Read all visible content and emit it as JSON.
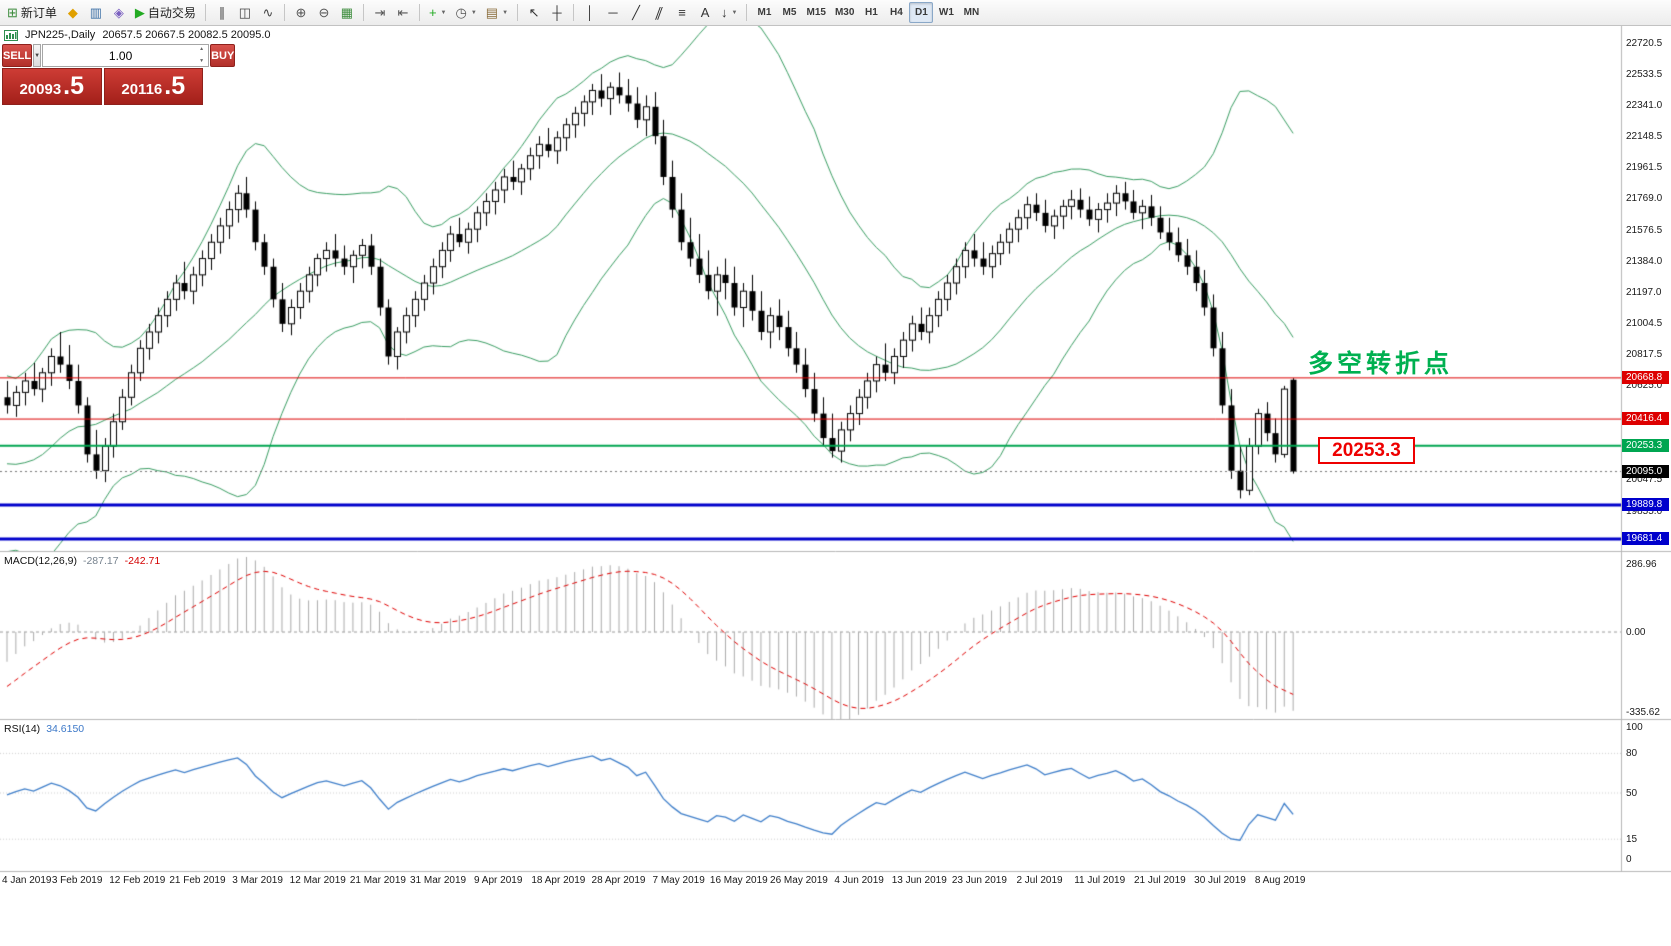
{
  "toolbar": {
    "groups": [
      {
        "name": "standard",
        "items": [
          {
            "name": "new-order-button",
            "glyph": "⊞",
            "color": "#3c8c3c",
            "label": "新订单"
          },
          {
            "name": "market-button",
            "glyph": "◆",
            "color": "#e0a000"
          },
          {
            "name": "terminal-button",
            "glyph": "▥",
            "color": "#3a6ea5"
          },
          {
            "name": "metaeditor-button",
            "glyph": "◈",
            "color": "#7a5fc0"
          },
          {
            "name": "autotrading-button",
            "glyph": "▶",
            "color": "#22aa22",
            "label": "自动交易"
          }
        ]
      },
      {
        "name": "chart-types",
        "items": [
          {
            "name": "bar-chart-button",
            "glyph": "∥",
            "color": "#444444"
          },
          {
            "name": "candlestick-chart-button",
            "glyph": "◫",
            "color": "#444444"
          },
          {
            "name": "line-chart-button",
            "glyph": "∿",
            "color": "#444444"
          }
        ]
      },
      {
        "name": "zoom",
        "items": [
          {
            "name": "zoom-in-button",
            "glyph": "⊕",
            "color": "#555555"
          },
          {
            "name": "zoom-out-button",
            "glyph": "⊖",
            "color": "#555555"
          },
          {
            "name": "tile-windows-button",
            "glyph": "▦",
            "color": "#3c8c3c"
          }
        ]
      },
      {
        "name": "scroll",
        "items": [
          {
            "name": "auto-scroll-button",
            "glyph": "⇥",
            "color": "#555555"
          },
          {
            "name": "chart-shift-button",
            "glyph": "⇤",
            "color": "#555555"
          }
        ]
      },
      {
        "name": "insert",
        "items": [
          {
            "name": "indicators-button",
            "glyph": "+",
            "color": "#22aa22",
            "dropdown": true
          },
          {
            "name": "periods-button",
            "glyph": "◷",
            "color": "#555555",
            "dropdown": true
          },
          {
            "name": "templates-button",
            "glyph": "▤",
            "color": "#8a6d3b",
            "dropdown": true
          }
        ]
      },
      {
        "name": "cursor",
        "items": [
          {
            "name": "cursor-button",
            "glyph": "↖",
            "color": "#333333"
          },
          {
            "name": "crosshair-button",
            "glyph": "┼",
            "color": "#333333"
          }
        ]
      },
      {
        "name": "objects",
        "items": [
          {
            "name": "vertical-line-button",
            "glyph": "│",
            "color": "#333333"
          },
          {
            "name": "horizontal-line-button",
            "glyph": "─",
            "color": "#333333"
          },
          {
            "name": "trendline-button",
            "glyph": "╱",
            "color": "#333333"
          },
          {
            "name": "channel-button",
            "glyph": "∥",
            "color": "#333333",
            "slanted": true
          },
          {
            "name": "fibonacci-button",
            "glyph": "≡",
            "color": "#333333"
          },
          {
            "name": "text-button",
            "glyph": "A",
            "color": "#333333"
          },
          {
            "name": "arrows-button",
            "glyph": "↓",
            "color": "#333333",
            "dropdown": true
          }
        ]
      },
      {
        "name": "timeframes",
        "items": [
          {
            "name": "timeframe-m1",
            "text": "M1"
          },
          {
            "name": "timeframe-m5",
            "text": "M5"
          },
          {
            "name": "timeframe-m15",
            "text": "M15"
          },
          {
            "name": "timeframe-m30",
            "text": "M30"
          },
          {
            "name": "timeframe-h1",
            "text": "H1"
          },
          {
            "name": "timeframe-h4",
            "text": "H4"
          },
          {
            "name": "timeframe-d1",
            "text": "D1",
            "active": true
          },
          {
            "name": "timeframe-w1",
            "text": "W1"
          },
          {
            "name": "timeframe-mn",
            "text": "MN"
          }
        ]
      }
    ]
  },
  "chart": {
    "title": "JPN225-,Daily",
    "ohlc_text": "20657.5 20667.5 20082.5 20095.0"
  },
  "trade_panel": {
    "sell_label": "SELL",
    "buy_label": "BUY",
    "lot_value": "1.00",
    "bid_main": "20093",
    "bid_frac": ".5",
    "ask_main": "20116",
    "ask_frac": ".5"
  },
  "annotations": {
    "turning_point_text": "多空转折点",
    "price_box_text": "20253.3"
  },
  "hlines": [
    {
      "price": 20668.8,
      "label": "20668.8",
      "color": "#dd0000",
      "width": 1
    },
    {
      "price": 20416.4,
      "label": "20416.4",
      "color": "#dd0000",
      "width": 1
    },
    {
      "price": 20253.3,
      "label": "20253.3",
      "color": "#00a651",
      "width": 2
    },
    {
      "price": 19889.8,
      "label": "19889.8",
      "color": "#0000cc",
      "width": 3
    },
    {
      "price": 19681.4,
      "label": "19681.4",
      "color": "#0000cc",
      "width": 3
    }
  ],
  "current_price": {
    "value": 20095.0,
    "label": "20095.0",
    "color": "#000000"
  },
  "price_axis": {
    "ticks": [
      22720.5,
      22533.5,
      22341.0,
      22148.5,
      21961.5,
      21769.0,
      21576.5,
      21384.0,
      21197.0,
      21004.5,
      20817.5,
      20625.0,
      20432.5,
      20240.0,
      20047.5,
      19855.0,
      19662.5
    ]
  },
  "macd_panel": {
    "label": "MACD(12,26,9)",
    "value_main": "-287.17",
    "value_signal": "-242.71",
    "axis": [
      {
        "value": 286.96,
        "label": "286.96"
      },
      {
        "value": 0,
        "label": "0.00"
      },
      {
        "value": -335.62,
        "label": "-335.62"
      }
    ]
  },
  "rsi_panel": {
    "label": "RSI(14)",
    "value": "34.6150",
    "axis": [
      {
        "value": 100,
        "label": "100"
      },
      {
        "value": 80,
        "label": "80"
      },
      {
        "value": 50,
        "label": "50"
      },
      {
        "value": 15,
        "label": "15"
      },
      {
        "value": 0,
        "label": "0"
      }
    ],
    "levels": [
      80,
      50,
      15
    ]
  },
  "time_axis": {
    "labels": [
      "4 Jan 2019",
      "3 Feb 2019",
      "12 Feb 2019",
      "21 Feb 2019",
      "3 Mar 2019",
      "12 Mar 2019",
      "21 Mar 2019",
      "31 Mar 2019",
      "9 Apr 2019",
      "18 Apr 2019",
      "28 Apr 2019",
      "7 May 2019",
      "16 May 2019",
      "26 May 2019",
      "4 Jun 2019",
      "13 Jun 2019",
      "23 Jun 2019",
      "2 Jul 2019",
      "11 Jul 2019",
      "21 Jul 2019",
      "30 Jul 2019",
      "8 Aug 2019"
    ]
  },
  "chart_data": {
    "type": "candlestick",
    "symbol": "JPN225-",
    "timeframe": "Daily",
    "title": "JPN225-,Daily",
    "last_ohlc": [
      20657.5,
      20667.5,
      20082.5,
      20095.0
    ],
    "ylim": [
      19608,
      22825
    ],
    "macd_ylim": [
      340,
      -365
    ],
    "overlays": [
      {
        "name": "Bollinger Bands",
        "period": 20,
        "deviation": 2,
        "color": "#3a9e63"
      }
    ],
    "indicators": [
      {
        "name": "MACD",
        "params": [
          12,
          26,
          9
        ]
      },
      {
        "name": "RSI",
        "params": [
          14
        ]
      }
    ],
    "prehistory_closes": [
      21500,
      21400,
      21300,
      21200,
      21100,
      21000,
      20900,
      20800,
      20900,
      21000,
      20850,
      20650,
      20450,
      20250,
      20050,
      19850,
      19700,
      19800,
      19950,
      20100,
      19900,
      19750,
      19900,
      20100,
      20250,
      20150,
      20300,
      20400,
      20350,
      20450
    ],
    "candles": [
      [
        20550,
        20650,
        20450,
        20500
      ],
      [
        20500,
        20620,
        20430,
        20580
      ],
      [
        20580,
        20700,
        20500,
        20650
      ],
      [
        20650,
        20760,
        20560,
        20600
      ],
      [
        20600,
        20730,
        20520,
        20700
      ],
      [
        20700,
        20850,
        20620,
        20800
      ],
      [
        20800,
        20950,
        20700,
        20750
      ],
      [
        20750,
        20870,
        20600,
        20650
      ],
      [
        20650,
        20750,
        20450,
        20500
      ],
      [
        20500,
        20550,
        20150,
        20200
      ],
      [
        20200,
        20350,
        20050,
        20100
      ],
      [
        20100,
        20300,
        20030,
        20250
      ],
      [
        20250,
        20450,
        20180,
        20400
      ],
      [
        20400,
        20600,
        20350,
        20550
      ],
      [
        20550,
        20750,
        20500,
        20700
      ],
      [
        20700,
        20900,
        20650,
        20850
      ],
      [
        20850,
        21000,
        20780,
        20950
      ],
      [
        20950,
        21100,
        20880,
        21050
      ],
      [
        21050,
        21200,
        20980,
        21150
      ],
      [
        21150,
        21300,
        21080,
        21250
      ],
      [
        21250,
        21380,
        21150,
        21200
      ],
      [
        21200,
        21350,
        21120,
        21300
      ],
      [
        21300,
        21450,
        21230,
        21400
      ],
      [
        21400,
        21550,
        21330,
        21500
      ],
      [
        21500,
        21650,
        21430,
        21600
      ],
      [
        21600,
        21750,
        21520,
        21700
      ],
      [
        21700,
        21850,
        21620,
        21800
      ],
      [
        21800,
        21900,
        21650,
        21700
      ],
      [
        21700,
        21750,
        21450,
        21500
      ],
      [
        21500,
        21550,
        21300,
        21350
      ],
      [
        21350,
        21400,
        21100,
        21150
      ],
      [
        21150,
        21250,
        20950,
        21000
      ],
      [
        21000,
        21150,
        20930,
        21100
      ],
      [
        21100,
        21250,
        21030,
        21200
      ],
      [
        21200,
        21350,
        21130,
        21300
      ],
      [
        21300,
        21430,
        21230,
        21400
      ],
      [
        21400,
        21500,
        21320,
        21450
      ],
      [
        21450,
        21550,
        21350,
        21400
      ],
      [
        21400,
        21480,
        21300,
        21350
      ],
      [
        21350,
        21450,
        21250,
        21420
      ],
      [
        21420,
        21520,
        21340,
        21480
      ],
      [
        21480,
        21550,
        21300,
        21350
      ],
      [
        21350,
        21400,
        21050,
        21100
      ],
      [
        21100,
        21150,
        20750,
        20800
      ],
      [
        20800,
        20980,
        20720,
        20950
      ],
      [
        20950,
        21100,
        20880,
        21050
      ],
      [
        21050,
        21200,
        20980,
        21150
      ],
      [
        21150,
        21300,
        21080,
        21250
      ],
      [
        21250,
        21400,
        21180,
        21350
      ],
      [
        21350,
        21500,
        21280,
        21450
      ],
      [
        21450,
        21600,
        21380,
        21550
      ],
      [
        21550,
        21650,
        21470,
        21500
      ],
      [
        21500,
        21620,
        21430,
        21580
      ],
      [
        21580,
        21720,
        21500,
        21680
      ],
      [
        21680,
        21800,
        21600,
        21750
      ],
      [
        21750,
        21870,
        21670,
        21820
      ],
      [
        21820,
        21950,
        21740,
        21900
      ],
      [
        21900,
        22000,
        21820,
        21870
      ],
      [
        21870,
        21980,
        21790,
        21950
      ],
      [
        21950,
        22080,
        21880,
        22030
      ],
      [
        22030,
        22150,
        21950,
        22100
      ],
      [
        22100,
        22200,
        22020,
        22060
      ],
      [
        22060,
        22180,
        21980,
        22140
      ],
      [
        22140,
        22260,
        22060,
        22220
      ],
      [
        22220,
        22330,
        22140,
        22290
      ],
      [
        22290,
        22400,
        22210,
        22360
      ],
      [
        22360,
        22470,
        22280,
        22430
      ],
      [
        22430,
        22530,
        22330,
        22380
      ],
      [
        22380,
        22480,
        22280,
        22450
      ],
      [
        22450,
        22540,
        22350,
        22400
      ],
      [
        22400,
        22500,
        22300,
        22350
      ],
      [
        22350,
        22450,
        22200,
        22250
      ],
      [
        22250,
        22400,
        22150,
        22330
      ],
      [
        22330,
        22420,
        22100,
        22150
      ],
      [
        22150,
        22250,
        21850,
        21900
      ],
      [
        21900,
        22000,
        21650,
        21700
      ],
      [
        21700,
        21800,
        21450,
        21500
      ],
      [
        21500,
        21650,
        21350,
        21400
      ],
      [
        21400,
        21550,
        21250,
        21300
      ],
      [
        21300,
        21450,
        21150,
        21200
      ],
      [
        21200,
        21350,
        21050,
        21300
      ],
      [
        21300,
        21400,
        21150,
        21250
      ],
      [
        21250,
        21350,
        21050,
        21100
      ],
      [
        21100,
        21250,
        20980,
        21200
      ],
      [
        21200,
        21300,
        21020,
        21080
      ],
      [
        21080,
        21200,
        20900,
        20950
      ],
      [
        20950,
        21100,
        20850,
        21050
      ],
      [
        21050,
        21150,
        20900,
        20980
      ],
      [
        20980,
        21080,
        20800,
        20850
      ],
      [
        20850,
        20950,
        20700,
        20750
      ],
      [
        20750,
        20850,
        20550,
        20600
      ],
      [
        20600,
        20700,
        20400,
        20450
      ],
      [
        20450,
        20550,
        20250,
        20300
      ],
      [
        20300,
        20450,
        20180,
        20220
      ],
      [
        20220,
        20400,
        20150,
        20350
      ],
      [
        20350,
        20500,
        20280,
        20450
      ],
      [
        20450,
        20600,
        20380,
        20550
      ],
      [
        20550,
        20700,
        20480,
        20650
      ],
      [
        20650,
        20800,
        20580,
        20750
      ],
      [
        20750,
        20880,
        20650,
        20700
      ],
      [
        20700,
        20850,
        20630,
        20800
      ],
      [
        20800,
        20950,
        20730,
        20900
      ],
      [
        20900,
        21050,
        20830,
        21000
      ],
      [
        21000,
        21100,
        20900,
        20950
      ],
      [
        20950,
        21100,
        20880,
        21050
      ],
      [
        21050,
        21200,
        20980,
        21150
      ],
      [
        21150,
        21300,
        21080,
        21250
      ],
      [
        21250,
        21400,
        21180,
        21350
      ],
      [
        21350,
        21500,
        21280,
        21450
      ],
      [
        21450,
        21550,
        21350,
        21400
      ],
      [
        21400,
        21500,
        21300,
        21350
      ],
      [
        21350,
        21480,
        21280,
        21430
      ],
      [
        21430,
        21550,
        21360,
        21500
      ],
      [
        21500,
        21620,
        21430,
        21580
      ],
      [
        21580,
        21700,
        21500,
        21650
      ],
      [
        21650,
        21780,
        21580,
        21730
      ],
      [
        21730,
        21800,
        21630,
        21680
      ],
      [
        21680,
        21760,
        21560,
        21600
      ],
      [
        21600,
        21700,
        21520,
        21660
      ],
      [
        21660,
        21760,
        21580,
        21720
      ],
      [
        21720,
        21820,
        21640,
        21760
      ],
      [
        21760,
        21830,
        21650,
        21700
      ],
      [
        21700,
        21780,
        21600,
        21640
      ],
      [
        21640,
        21740,
        21560,
        21700
      ],
      [
        21700,
        21800,
        21620,
        21740
      ],
      [
        21740,
        21850,
        21660,
        21800
      ],
      [
        21800,
        21870,
        21700,
        21750
      ],
      [
        21750,
        21820,
        21640,
        21680
      ],
      [
        21680,
        21760,
        21580,
        21720
      ],
      [
        21720,
        21790,
        21600,
        21650
      ],
      [
        21650,
        21720,
        21520,
        21560
      ],
      [
        21560,
        21650,
        21450,
        21500
      ],
      [
        21500,
        21590,
        21380,
        21420
      ],
      [
        21420,
        21520,
        21300,
        21350
      ],
      [
        21350,
        21450,
        21200,
        21250
      ],
      [
        21250,
        21330,
        21050,
        21100
      ],
      [
        21100,
        21180,
        20800,
        20850
      ],
      [
        20850,
        20950,
        20450,
        20500
      ],
      [
        20500,
        20600,
        20050,
        20100
      ],
      [
        20100,
        20250,
        19930,
        19980
      ],
      [
        19980,
        20300,
        19950,
        20250
      ],
      [
        20250,
        20480,
        20200,
        20450
      ],
      [
        20450,
        20520,
        20280,
        20330
      ],
      [
        20330,
        20420,
        20150,
        20200
      ],
      [
        20200,
        20620,
        20180,
        20600
      ],
      [
        20657.5,
        20667.5,
        20082.5,
        20095.0
      ]
    ]
  }
}
